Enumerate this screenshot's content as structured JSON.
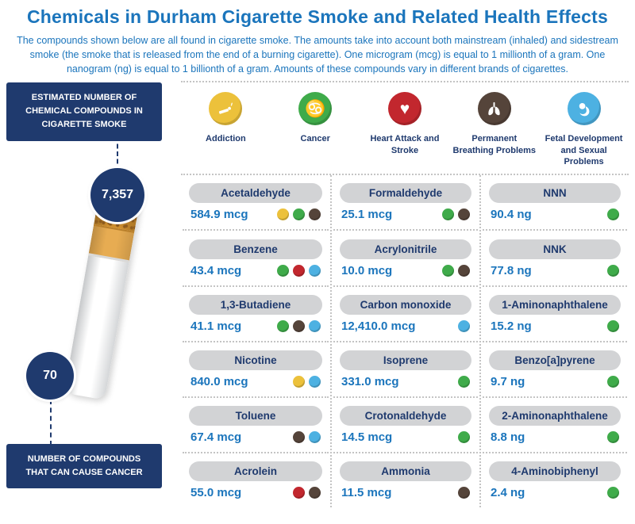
{
  "header": {
    "title": "Chemicals in Durham Cigarette Smoke and Related Health Effects",
    "intro": "The compounds shown below are all found in cigarette smoke. The amounts take into account both mainstream (inhaled) and sidestream smoke (the smoke that is released from the end of a burning cigarette). One microgram (mcg) is equal to 1 millionth of a gram. One nanogram (ng) is equal to 1 billionth of a gram. Amounts of these compounds vary in different brands of cigarettes."
  },
  "sidebar": {
    "top_label": "ESTIMATED NUMBER OF CHEMICAL COMPOUNDS IN CIGARETTE SMOKE",
    "top_value": "7,357",
    "bottom_value": "70",
    "bottom_label": "NUMBER OF COMPOUNDS THAT CAN CAUSE CANCER"
  },
  "effect_colors": {
    "addiction": "#ECC13B",
    "cancer": "#3FAB4A",
    "heart": "#C2272E",
    "breathing": "#55443A",
    "fetal": "#4DB1E2"
  },
  "legend": [
    {
      "key": "addiction",
      "label": "Addiction",
      "color": "#ECC13B"
    },
    {
      "key": "cancer",
      "label": "Cancer",
      "color": "#3FAB4A"
    },
    {
      "key": "heart",
      "label": "Heart Attack and Stroke",
      "color": "#C2272E"
    },
    {
      "key": "breathing",
      "label": "Permanent Breathing Problems",
      "color": "#55443A"
    },
    {
      "key": "fetal",
      "label": "Fetal Development and Sexual Problems",
      "color": "#4DB1E2"
    }
  ],
  "columns": [
    {
      "entries": [
        {
          "name": "Acetaldehyde",
          "amount": "584.9 mcg",
          "effects": [
            "addiction",
            "cancer",
            "breathing"
          ]
        },
        {
          "name": "Benzene",
          "amount": "43.4 mcg",
          "effects": [
            "cancer",
            "heart",
            "fetal"
          ]
        },
        {
          "name": "1,3-Butadiene",
          "amount": "41.1 mcg",
          "effects": [
            "cancer",
            "breathing",
            "fetal"
          ]
        },
        {
          "name": "Nicotine",
          "amount": "840.0 mcg",
          "effects": [
            "addiction",
            "fetal"
          ]
        },
        {
          "name": "Toluene",
          "amount": "67.4 mcg",
          "effects": [
            "breathing",
            "fetal"
          ]
        },
        {
          "name": "Acrolein",
          "amount": "55.0 mcg",
          "effects": [
            "heart",
            "breathing"
          ]
        }
      ]
    },
    {
      "entries": [
        {
          "name": "Formaldehyde",
          "amount": "25.1 mcg",
          "effects": [
            "cancer",
            "breathing"
          ]
        },
        {
          "name": "Acrylonitrile",
          "amount": "10.0 mcg",
          "effects": [
            "cancer",
            "breathing"
          ]
        },
        {
          "name": "Carbon monoxide",
          "amount": "12,410.0 mcg",
          "effects": [
            "fetal"
          ]
        },
        {
          "name": "Isoprene",
          "amount": "331.0 mcg",
          "effects": [
            "cancer"
          ]
        },
        {
          "name": "Crotonaldehyde",
          "amount": "14.5 mcg",
          "effects": [
            "cancer"
          ]
        },
        {
          "name": "Ammonia",
          "amount": "11.5 mcg",
          "effects": [
            "breathing"
          ]
        }
      ]
    },
    {
      "entries": [
        {
          "name": "NNN",
          "amount": "90.4 ng",
          "effects": [
            "cancer"
          ]
        },
        {
          "name": "NNK",
          "amount": "77.8 ng",
          "effects": [
            "cancer"
          ]
        },
        {
          "name": "1-Aminonaphthalene",
          "amount": "15.2 ng",
          "effects": [
            "cancer"
          ]
        },
        {
          "name": "Benzo[a]pyrene",
          "amount": "9.7 ng",
          "effects": [
            "cancer"
          ]
        },
        {
          "name": "2-Aminonaphthalene",
          "amount": "8.8 ng",
          "effects": [
            "cancer"
          ]
        },
        {
          "name": "4-Aminobiphenyl",
          "amount": "2.4 ng",
          "effects": [
            "cancer"
          ]
        }
      ]
    }
  ]
}
